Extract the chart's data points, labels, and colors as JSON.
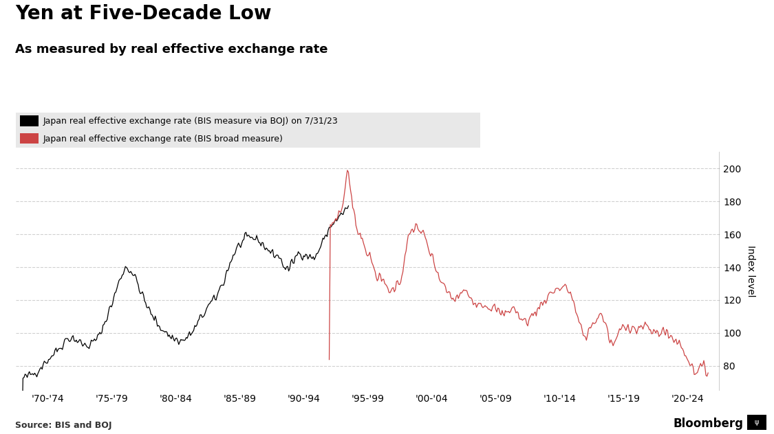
{
  "title": "Yen at Five-Decade Low",
  "subtitle": "As measured by real effective exchange rate",
  "legend1": "Japan real effective exchange rate (BIS measure via BOJ) on 7/31/23",
  "legend2": "Japan real effective exchange rate (BIS broad measure)",
  "ylabel": "Index level",
  "source": "Source: BIS and BOJ",
  "watermark": "Bloomberg",
  "ylim": [
    65,
    210
  ],
  "yticks": [
    80,
    100,
    120,
    140,
    160,
    180,
    200
  ],
  "background_color": "#ffffff",
  "grid_color": "#d0d0d0",
  "line1_color": "#000000",
  "line2_color": "#cc4444",
  "xtick_labels": [
    "'70-'74",
    "'75-'79",
    "'80-'84",
    "'85-'89",
    "'90-'94",
    "'95-'99",
    "'00-'04",
    "'05-'09",
    "'10-'14",
    "'15-'19",
    "'20-'24"
  ],
  "xtick_positions": [
    1972,
    1977,
    1982,
    1987,
    1992,
    1997,
    2002,
    2007,
    2012,
    2017,
    2022
  ],
  "xlim": [
    1969.5,
    2024.5
  ],
  "legend_bg": "#e8e8e8"
}
